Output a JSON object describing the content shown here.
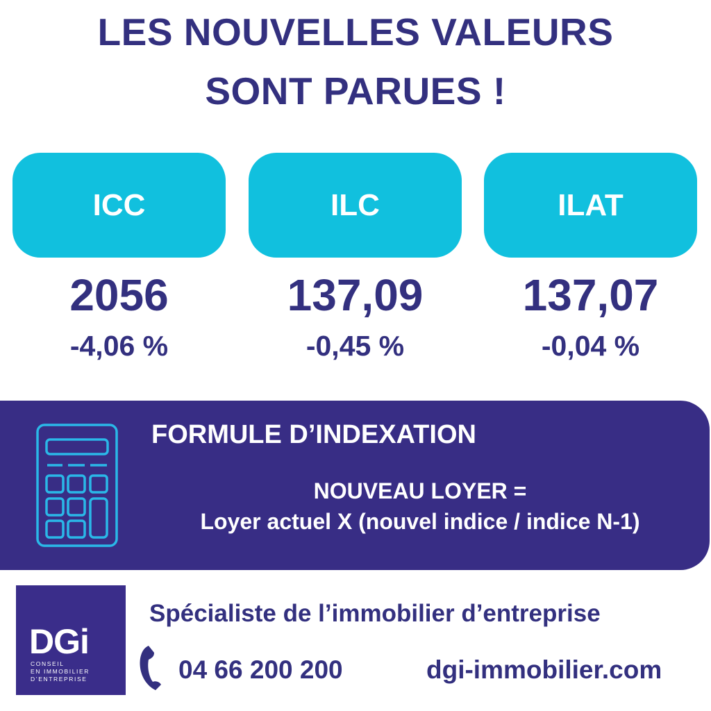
{
  "title": {
    "line1": "LES NOUVELLES VALEURS",
    "line2": "SONT PARUES !"
  },
  "indices": [
    {
      "label": "ICC",
      "value": "2056",
      "change": "-4,06 %"
    },
    {
      "label": "ILC",
      "value": "137,09",
      "change": "-0,45 %"
    },
    {
      "label": "ILAT",
      "value": "137,07",
      "change": "-0,04 %"
    }
  ],
  "formula": {
    "icon": "calculator-icon",
    "heading": "FORMULE D’INDEXATION",
    "line1": "NOUVEAU LOYER =",
    "line2": "Loyer actuel X (nouvel indice / indice N-1)"
  },
  "footer": {
    "logo": {
      "name": "DGi",
      "line1": "CONSEIL",
      "line2": "EN IMMOBILIER",
      "line3": "D’ENTREPRISE"
    },
    "tagline": "Spécialiste de l’immobilier d’entreprise",
    "phone_icon": "phone-icon",
    "phone": "04 66 200 200",
    "website": "dgi-immobilier.com"
  },
  "colors": {
    "navy": "#33307f",
    "cyan": "#11c0de",
    "panel": "#382d85"
  }
}
